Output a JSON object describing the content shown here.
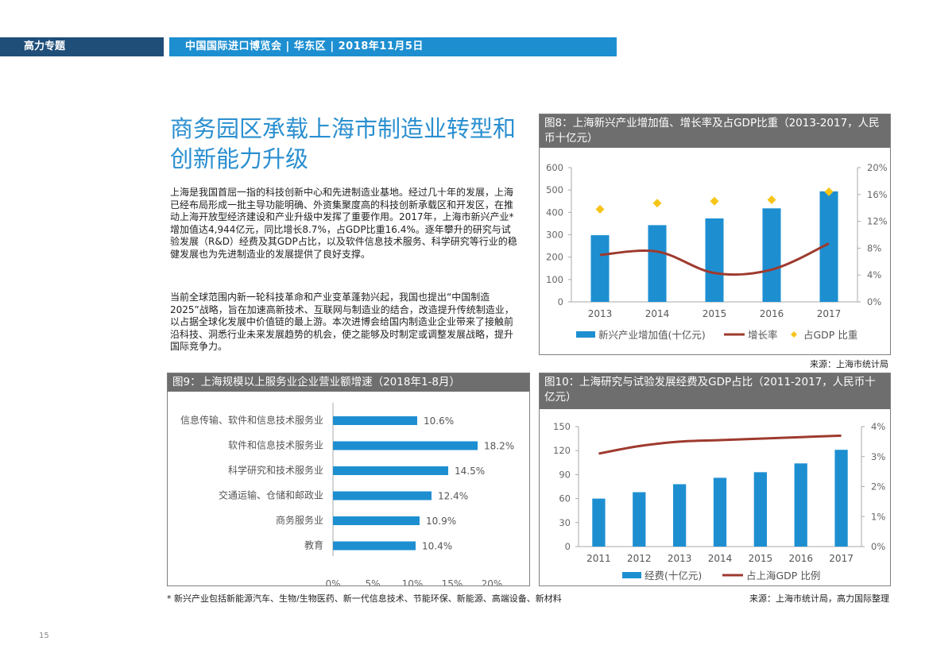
{
  "header": {
    "section": "高力专题",
    "event": "中国国际进口博览会 | 华东区 | 2018年11月5日"
  },
  "title": "商务园区承载上海市制造业转型和创新能力升级",
  "paragraphs": [
    "上海是我国首屈一指的科技创新中心和先进制造业基地。经过几十年的发展，上海已经布局形成一批主导功能明确、外资集聚度高的科技创新承载区和开发区，在推动上海开放型经济建设和产业升级中发挥了重要作用。2017年，上海市新兴产业*增加值达4,944亿元，同比增长8.7%，占GDP比重16.4%。逐年攀升的研究与试验发展（R&D）经费及其GDP占比，以及软件信息技术服务、科学研究等行业的稳健发展也为先进制造业的发展提供了良好支撑。",
    "当前全球范围内新一轮科技革命和产业变革蓬勃兴起，我国也提出“中国制造2025”战略，旨在加速高新技术、互联网与制造业的结合，改造提升传统制造业，以占据全球化发展中价值链的最上游。本次进博会给国内制造业企业带来了接触前沿科技、洞悉行业未来发展趋势的机会，使之能够及时制定或调整发展战略，提升国际竞争力。"
  ],
  "fig8": {
    "title": "图8：上海新兴产业增加值、增长率及占GDP比重（2013-2017，人民币十亿元）",
    "source": "来源：上海市统计局"
  },
  "fig9": {
    "title": "图9：上海规模以上服务业企业营业额增速（2018年1-8月）"
  },
  "fig10": {
    "title": "图10：上海研究与试验发展经费及GDP占比（2011-2017，人民币十亿元）",
    "source": "来源：上海市统计局，高力国际整理"
  },
  "footnote": "* 新兴产业包括新能源汽车、生物/生物医药、新一代信息技术、节能环保、新能源、高端设备、新材料",
  "page_number": "15",
  "colors": {
    "bar": "#1d8fd1",
    "line": "#9e3a2e",
    "diamond": "#f5c518",
    "header_dark": "#1f4e79"
  },
  "chart_data": [
    {
      "id": "fig8",
      "type": "bar",
      "categories": [
        "2013",
        "2014",
        "2015",
        "2016",
        "2017"
      ],
      "series": [
        {
          "name": "新兴产业增加值(十亿元)",
          "type": "bar",
          "axis": "left",
          "values": [
            298,
            343,
            373,
            418,
            494
          ]
        },
        {
          "name": "增长率",
          "type": "line",
          "axis": "right",
          "values": [
            7.0,
            7.5,
            4.3,
            4.8,
            8.7
          ]
        },
        {
          "name": "占GDP 比重",
          "type": "scatter",
          "axis": "right",
          "values": [
            13.8,
            14.7,
            15.0,
            15.2,
            16.4
          ]
        }
      ],
      "ylim": [
        0,
        600
      ],
      "yticks": [
        "0",
        "100",
        "200",
        "300",
        "400",
        "500",
        "600"
      ],
      "y2lim": [
        0,
        20
      ],
      "y2ticks": [
        "0%",
        "4%",
        "8%",
        "12%",
        "16%",
        "20%"
      ],
      "legend": "bottom"
    },
    {
      "id": "fig9",
      "type": "bar",
      "orientation": "horizontal",
      "categories": [
        "信息传输、软件和信息技术服务业",
        "软件和信息技术服务业",
        "科学研究和技术服务业",
        "交通运输、仓储和邮政业",
        "商务服务业",
        "教育"
      ],
      "values": [
        10.6,
        18.2,
        14.5,
        12.4,
        10.9,
        10.4
      ],
      "value_labels": [
        "10.6%",
        "18.2%",
        "14.5%",
        "12.4%",
        "10.9%",
        "10.4%"
      ],
      "xlim": [
        0,
        20
      ],
      "xticks": [
        "0%",
        "5%",
        "10%",
        "15%",
        "20%"
      ]
    },
    {
      "id": "fig10",
      "type": "bar",
      "categories": [
        "2011",
        "2012",
        "2013",
        "2014",
        "2015",
        "2016",
        "2017"
      ],
      "series": [
        {
          "name": "经费(十亿元)",
          "type": "bar",
          "axis": "left",
          "values": [
            60,
            68,
            78,
            86,
            93,
            104,
            121
          ]
        },
        {
          "name": "占上海GDP 比例",
          "type": "line",
          "axis": "right",
          "values": [
            3.1,
            3.35,
            3.5,
            3.55,
            3.6,
            3.65,
            3.7
          ]
        }
      ],
      "ylim": [
        0,
        150
      ],
      "yticks": [
        "0",
        "30",
        "60",
        "90",
        "120",
        "150"
      ],
      "y2lim": [
        0,
        4
      ],
      "y2ticks": [
        "0%",
        "1%",
        "2%",
        "3%",
        "4%"
      ],
      "legend": "bottom"
    }
  ]
}
